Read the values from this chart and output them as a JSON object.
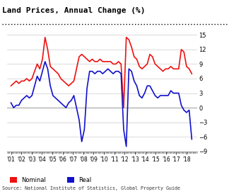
{
  "title": "Land Prices, Annual Change (%)",
  "source": "Source: National Institute of Statistics, Global Property Guide",
  "ylim": [
    -9,
    15
  ],
  "yticks": [
    -9,
    -6,
    -3,
    0,
    3,
    6,
    9,
    12,
    15
  ],
  "background_color": "#ffffff",
  "nominal_color": "#ee1111",
  "real_color": "#1111cc",
  "line_width": 1.2,
  "x_labels": [
    "'01",
    "'02",
    "'03",
    "'04",
    "'05",
    "'06",
    "'07",
    "'08",
    "'09",
    "'10",
    "'11",
    "'12",
    "'13",
    "'14",
    "'15",
    "'16",
    "'17",
    "'18"
  ],
  "nominal_data": [
    4.5,
    5.0,
    5.5,
    5.0,
    5.5,
    5.5,
    6.0,
    5.5,
    6.0,
    7.5,
    9.0,
    8.0,
    10.0,
    14.5,
    12.0,
    8.5,
    8.0,
    7.5,
    7.0,
    6.0,
    5.5,
    5.0,
    4.5,
    5.0,
    5.5,
    8.0,
    10.5,
    11.0,
    10.5,
    10.0,
    9.5,
    10.0,
    9.5,
    9.5,
    10.0,
    9.5,
    9.5,
    9.5,
    9.5,
    9.0,
    9.0,
    9.5,
    9.0,
    0.0,
    14.5,
    14.0,
    12.5,
    10.5,
    10.0,
    8.5,
    8.0,
    8.5,
    9.0,
    11.0,
    10.5,
    9.0,
    8.5,
    8.0,
    7.5,
    8.0,
    8.0,
    8.5,
    8.0,
    8.0,
    8.0,
    12.0,
    11.5,
    8.5,
    8.0,
    7.0
  ],
  "real_data": [
    1.0,
    0.0,
    0.5,
    0.5,
    1.5,
    2.0,
    2.5,
    2.0,
    2.5,
    4.5,
    6.5,
    5.5,
    7.5,
    9.5,
    8.0,
    4.5,
    2.5,
    2.0,
    1.5,
    1.0,
    0.5,
    0.0,
    1.0,
    1.5,
    2.5,
    0.0,
    -2.5,
    -7.0,
    -4.5,
    4.0,
    7.5,
    7.5,
    7.0,
    7.5,
    7.5,
    7.0,
    7.5,
    8.0,
    7.5,
    7.0,
    7.5,
    7.5,
    7.0,
    -4.5,
    -8.0,
    8.0,
    7.5,
    5.5,
    4.5,
    2.5,
    2.0,
    3.0,
    4.5,
    4.5,
    3.5,
    2.5,
    2.0,
    2.5,
    2.5,
    2.5,
    2.5,
    3.5,
    3.0,
    3.0,
    3.0,
    0.5,
    -0.5,
    -1.0,
    -0.5,
    -6.5
  ]
}
